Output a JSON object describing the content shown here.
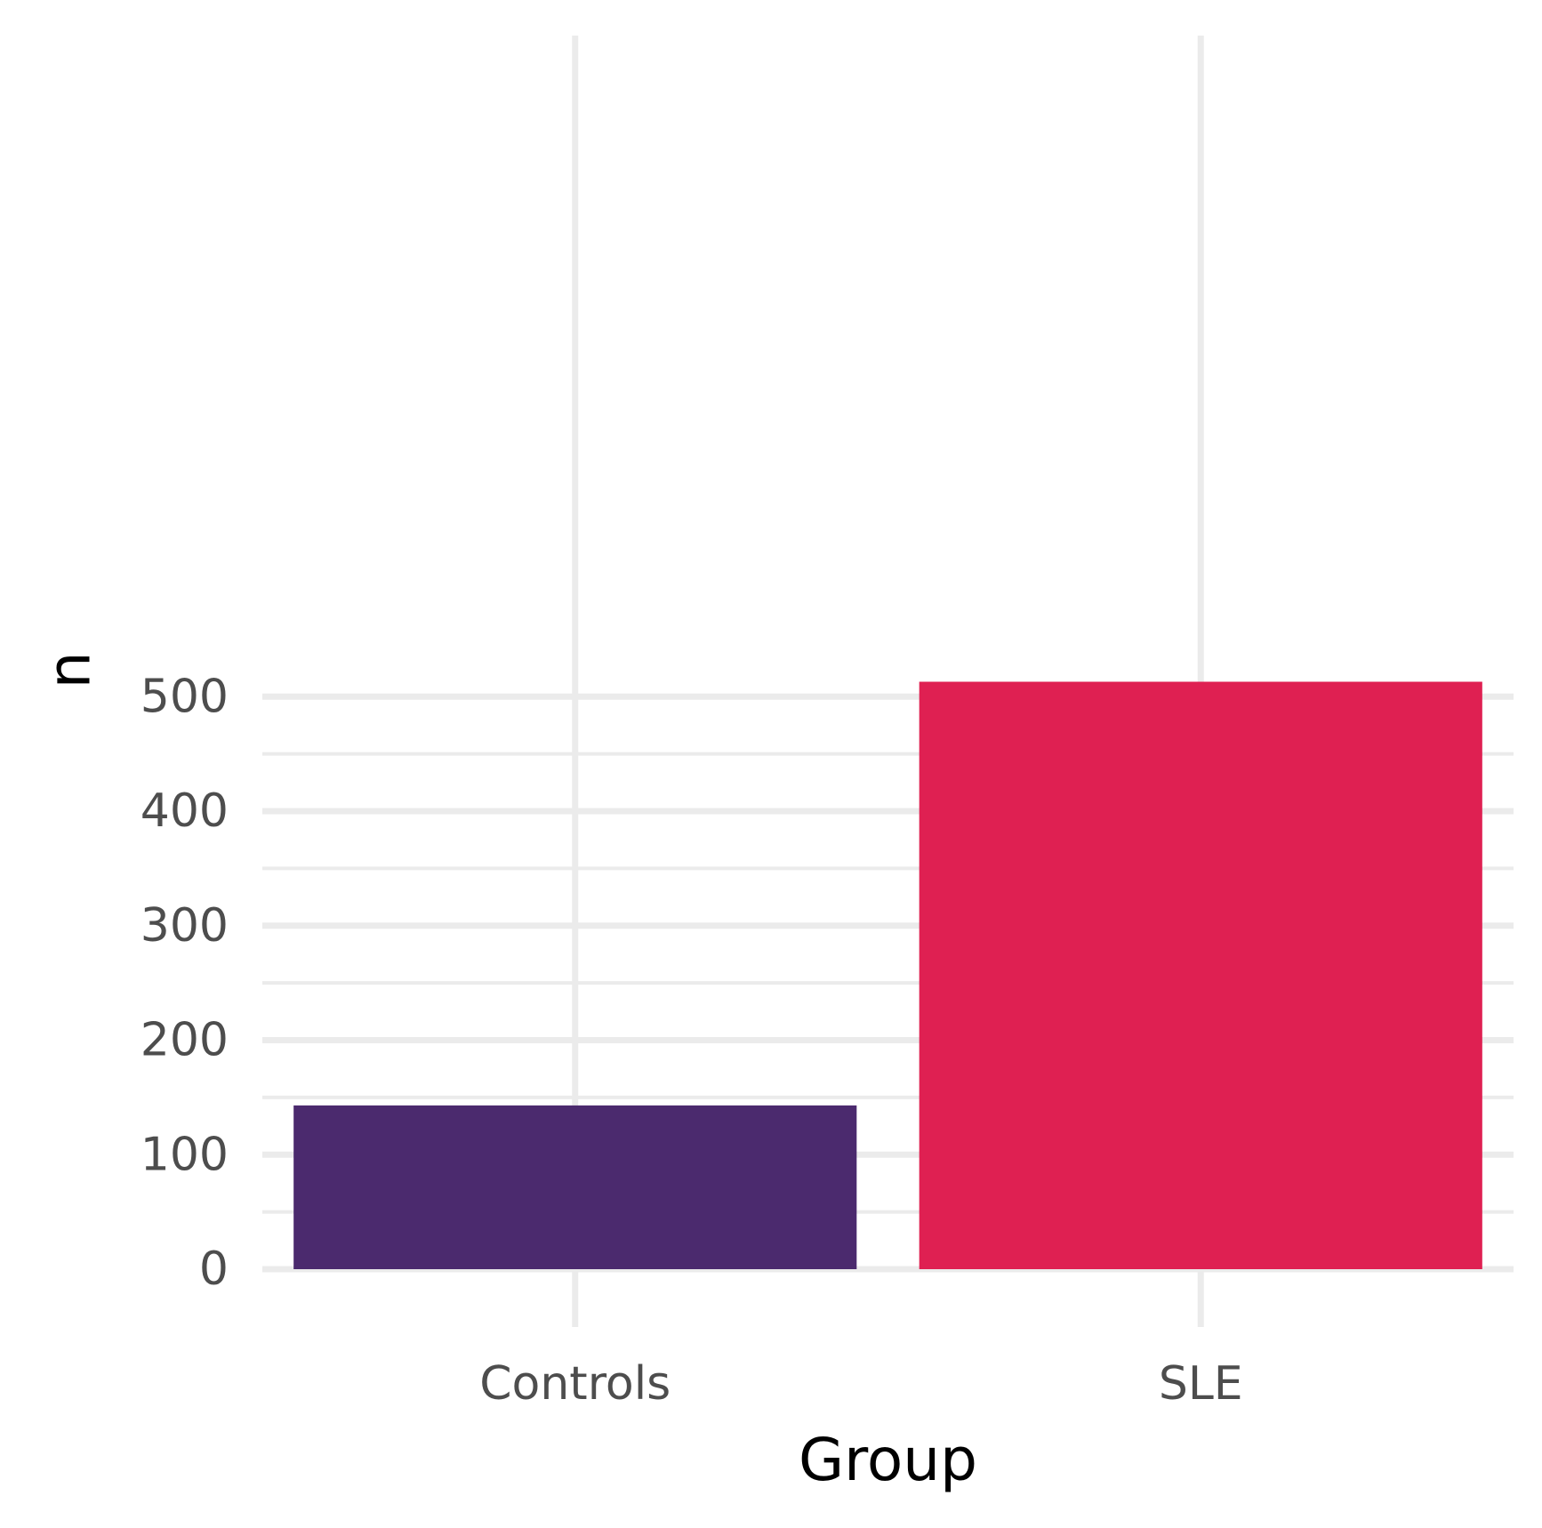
{
  "chart_data": {
    "type": "bar",
    "categories": [
      "Controls",
      "SLE"
    ],
    "values": [
      143,
      513
    ],
    "colors": [
      "#4b2a6e",
      "#df2052"
    ],
    "xlabel": "Group",
    "ylabel": "n",
    "ylim": [
      0,
      540
    ],
    "yticks": [
      0,
      100,
      200,
      300,
      400,
      500
    ],
    "ytick_labels": [
      "0",
      "100",
      "200",
      "300",
      "400",
      "500"
    ],
    "grid": true,
    "legend": "none"
  }
}
